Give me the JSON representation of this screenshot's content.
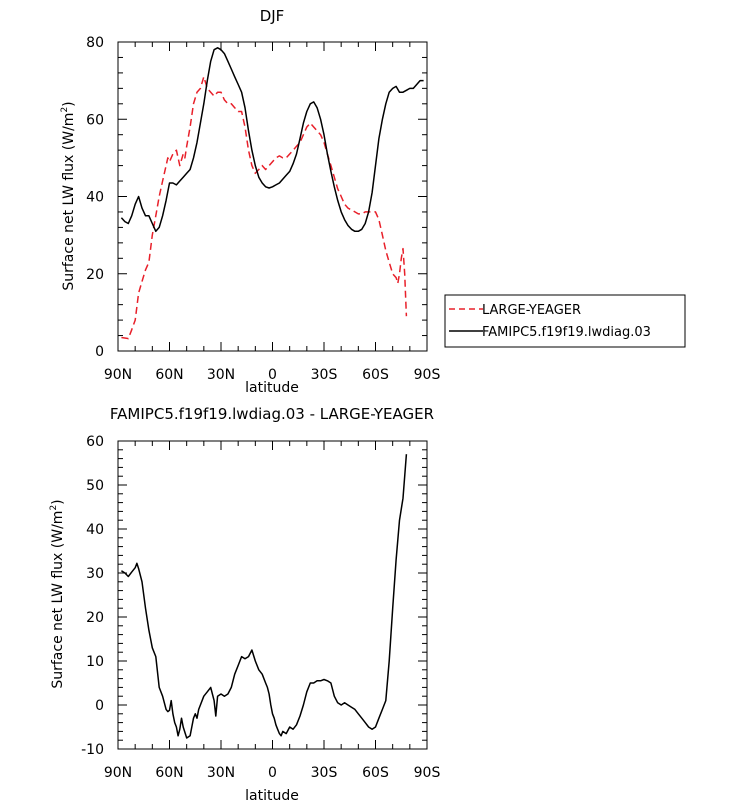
{
  "chart_data": [
    {
      "type": "line",
      "title": "DJF",
      "xlabel": "latitude",
      "ylabel": "Surface net LW flux (W/m",
      "ylabel_sup": "2",
      "ylabel_end": ")",
      "ylim": [
        0,
        80
      ],
      "yticks": [
        0,
        20,
        40,
        60,
        80
      ],
      "xlim": [
        90,
        -90
      ],
      "xticks": [
        90,
        60,
        30,
        0,
        -30,
        -60,
        -90
      ],
      "xtick_labels": [
        "90N",
        "60N",
        "30N",
        "0",
        "30S",
        "60S",
        "90S"
      ],
      "grid": false,
      "legend_position": "right",
      "series": [
        {
          "name": "LARGE-YEAGER",
          "color": "#e8202a",
          "dash": "dashed",
          "x": [
            88,
            84,
            82,
            80,
            78,
            76,
            74,
            72,
            70,
            68,
            66,
            64,
            62,
            61,
            60,
            58,
            56,
            55,
            54,
            52,
            51,
            50,
            48,
            46,
            44,
            42,
            40,
            38,
            36,
            34,
            32,
            30,
            28,
            26,
            24,
            22,
            20,
            18,
            16,
            14,
            12,
            10,
            8,
            6,
            4,
            2,
            0,
            -2,
            -4,
            -6,
            -8,
            -10,
            -12,
            -14,
            -16,
            -18,
            -20,
            -22,
            -24,
            -26,
            -28,
            -30,
            -32,
            -34,
            -36,
            -38,
            -40,
            -42,
            -44,
            -46,
            -48,
            -50,
            -52,
            -54,
            -56,
            -58,
            -60,
            -62,
            -64,
            -66,
            -68,
            -70,
            -72,
            -73,
            -74,
            -75,
            -76,
            -77,
            -78
          ],
          "y": [
            3.5,
            3.2,
            5.5,
            8,
            15,
            18,
            21,
            23,
            30,
            35,
            40,
            44,
            48,
            50,
            49,
            51,
            52,
            50,
            48,
            51,
            50,
            53,
            58,
            64,
            67,
            68,
            71,
            68,
            67,
            66,
            67,
            67,
            65,
            64,
            64,
            63,
            62,
            62,
            58,
            52,
            48,
            46,
            47,
            48,
            47,
            48,
            49,
            50,
            50.5,
            50,
            50,
            51,
            52,
            53,
            54,
            56,
            58,
            59,
            58,
            57,
            56,
            54,
            51,
            48,
            45,
            42,
            40,
            38,
            37,
            36.5,
            36,
            35.5,
            35.5,
            36,
            36,
            36,
            36,
            34,
            30,
            26,
            23,
            20,
            19,
            17.5,
            20,
            24,
            26.5,
            20,
            9
          ]
        },
        {
          "name": "FAMIPC5.f19f19.lwdiag.03",
          "color": "#000000",
          "dash": "solid",
          "x": [
            88,
            86,
            84,
            82,
            80,
            78,
            76,
            74,
            72,
            70,
            68,
            66,
            64,
            62,
            60,
            58,
            56,
            54,
            52,
            50,
            48,
            46,
            44,
            42,
            40,
            38,
            36,
            34,
            32,
            30,
            28,
            26,
            24,
            22,
            20,
            18,
            16,
            14,
            12,
            10,
            8,
            6,
            4,
            2,
            0,
            -2,
            -4,
            -6,
            -8,
            -10,
            -12,
            -14,
            -16,
            -18,
            -20,
            -22,
            -24,
            -26,
            -28,
            -30,
            -32,
            -34,
            -36,
            -38,
            -40,
            -42,
            -44,
            -46,
            -48,
            -50,
            -52,
            -54,
            -56,
            -58,
            -60,
            -62,
            -64,
            -66,
            -68,
            -70,
            -72,
            -74,
            -76,
            -78,
            -80,
            -82,
            -84,
            -86,
            -88
          ],
          "y": [
            34.5,
            33.5,
            33,
            35,
            38,
            40,
            37,
            35,
            35,
            33,
            31,
            32,
            35,
            39,
            43.5,
            43.5,
            43,
            44,
            45,
            46,
            47,
            50,
            54,
            59,
            64,
            70,
            75,
            78,
            78.5,
            78,
            77,
            75,
            73,
            71,
            69,
            67,
            63,
            57,
            52,
            48,
            45,
            43.5,
            42.5,
            42.2,
            42.5,
            43,
            43.5,
            44.5,
            45.5,
            46.5,
            48.5,
            51,
            55,
            59,
            62,
            64,
            64.5,
            63,
            60,
            56,
            51,
            46.5,
            42.5,
            39,
            36,
            34,
            32.5,
            31.5,
            31,
            31,
            31.5,
            33,
            36,
            41,
            48,
            55,
            60,
            64,
            67,
            68,
            68.5,
            67,
            67,
            67.5,
            68,
            68,
            69,
            70,
            70
          ]
        }
      ]
    },
    {
      "type": "line",
      "title": "FAMIPC5.f19f19.lwdiag.03 - LARGE-YEAGER",
      "xlabel": "latitude",
      "ylabel": "Surface net LW flux (W/m",
      "ylabel_sup": "2",
      "ylabel_end": ")",
      "ylim": [
        -10,
        60
      ],
      "yticks": [
        -10,
        0,
        10,
        20,
        30,
        40,
        50,
        60
      ],
      "xlim": [
        90,
        -90
      ],
      "xticks": [
        90,
        60,
        30,
        0,
        -30,
        -60,
        -90
      ],
      "xtick_labels": [
        "90N",
        "60N",
        "30N",
        "0",
        "30S",
        "60S",
        "90S"
      ],
      "grid": false,
      "series": [
        {
          "color": "#000000",
          "dash": "solid",
          "x": [
            88,
            86,
            84,
            82,
            80,
            79,
            78,
            76,
            74,
            72,
            70,
            68,
            66,
            64,
            62,
            61,
            60,
            59,
            58,
            57,
            56,
            55,
            54,
            53,
            52,
            50,
            48,
            47,
            46,
            45,
            44,
            43,
            42,
            40,
            38,
            36,
            34,
            33,
            32,
            30,
            28,
            26,
            24,
            22,
            20,
            18,
            16,
            14,
            12,
            10,
            8,
            6,
            4,
            3,
            2,
            1,
            0,
            -1,
            -2,
            -3,
            -4,
            -5,
            -6,
            -8,
            -10,
            -12,
            -14,
            -16,
            -18,
            -20,
            -22,
            -24,
            -26,
            -28,
            -30,
            -32,
            -34,
            -36,
            -38,
            -40,
            -42,
            -44,
            -46,
            -48,
            -50,
            -52,
            -54,
            -56,
            -58,
            -60,
            -62,
            -64,
            -66,
            -68,
            -70,
            -72,
            -74,
            -76,
            -78
          ],
          "y": [
            30.5,
            30,
            29.2,
            30.2,
            31.2,
            32.2,
            31,
            28,
            22,
            17,
            13,
            11,
            4,
            2,
            -1,
            -1.5,
            -1.2,
            1,
            -2,
            -4,
            -5,
            -7,
            -5.5,
            -3,
            -5,
            -7.5,
            -7,
            -5,
            -3,
            -2,
            -3,
            -1,
            0,
            2,
            3,
            4,
            1,
            -2.5,
            2,
            2.5,
            2,
            2.5,
            4,
            7,
            9,
            11,
            10.5,
            11,
            12.5,
            10,
            8,
            7,
            5,
            4,
            2.5,
            0,
            -2,
            -3,
            -4.5,
            -5.5,
            -6.5,
            -7,
            -6,
            -6.5,
            -5,
            -5.5,
            -4.5,
            -2.5,
            0,
            3,
            5,
            5,
            5.5,
            5.5,
            5.8,
            5.5,
            5,
            2,
            0.5,
            0,
            0.5,
            0,
            -0.5,
            -1,
            -2,
            -3,
            -4,
            -5,
            -5.5,
            -5,
            -3,
            -1,
            1,
            10,
            22,
            33,
            42,
            47,
            57
          ]
        }
      ]
    }
  ]
}
